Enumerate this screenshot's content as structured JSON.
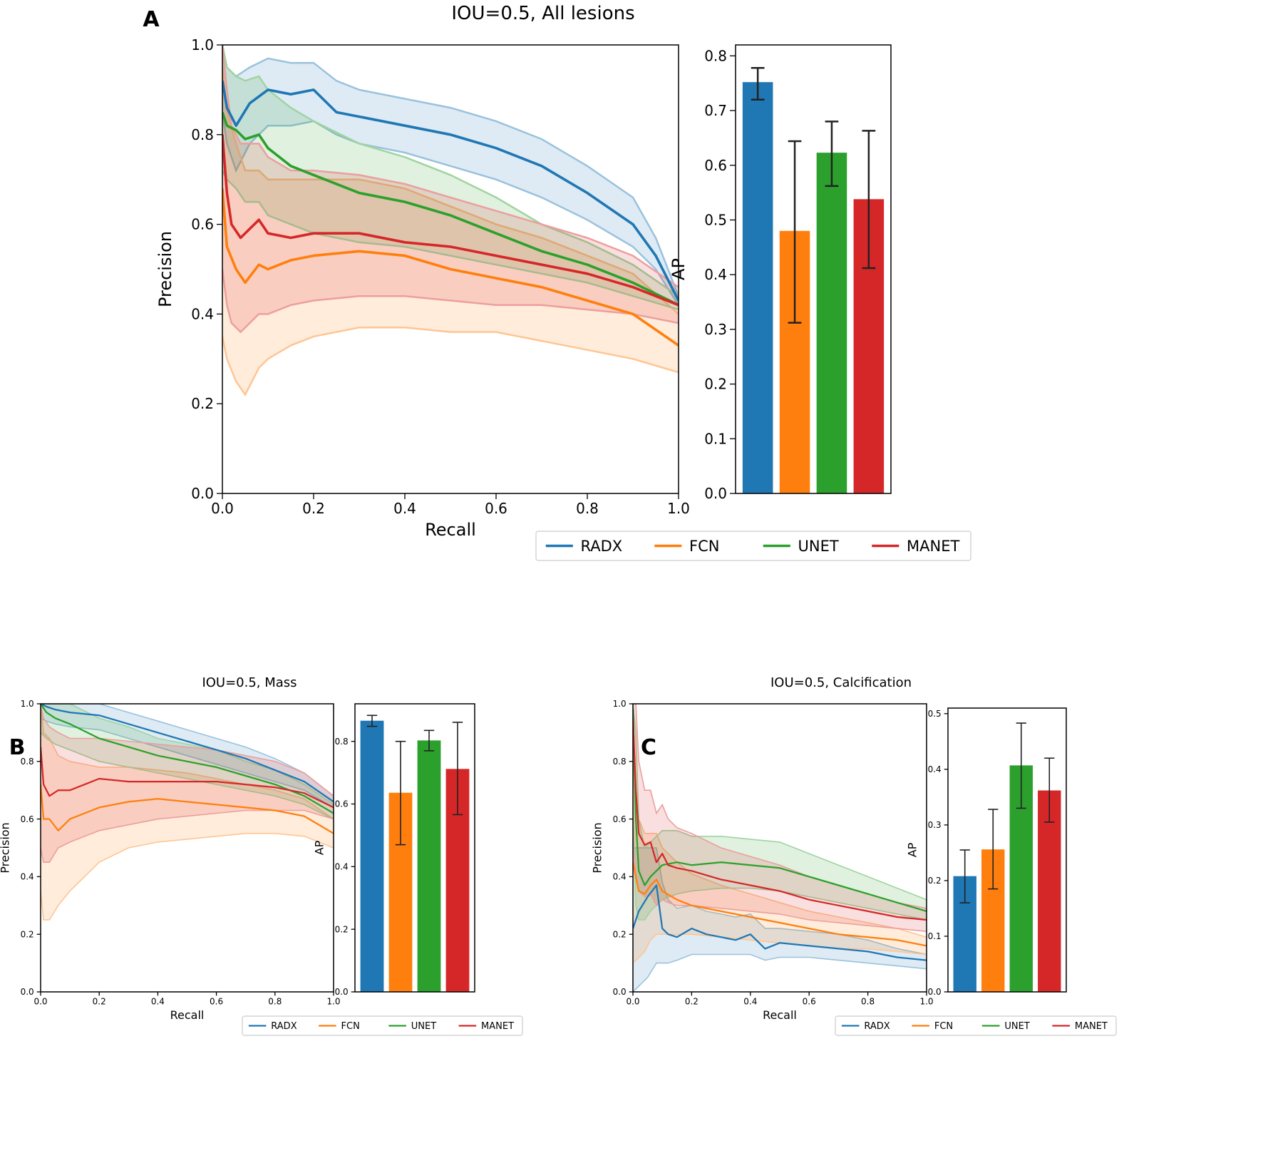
{
  "panel_labels": {
    "a": "A",
    "b": "B",
    "c": "C"
  },
  "colors": {
    "RADX": "#1f77b4",
    "FCN": "#ff7f0e",
    "UNET": "#2ca02c",
    "MANET": "#d62728",
    "axis": "#000000"
  },
  "chart_data": [
    {
      "id": "A",
      "type": "line",
      "title": "IOU=0.5, All lesions",
      "xlabel": "Recall",
      "ylabel": "Precision",
      "xlim": [
        0,
        1
      ],
      "ylim": [
        0,
        1
      ],
      "xticks": [
        "0.0",
        "0.2",
        "0.4",
        "0.6",
        "0.8",
        "1.0"
      ],
      "yticks": [
        "0.0",
        "0.2",
        "0.4",
        "0.6",
        "0.8",
        "1.0"
      ],
      "series": [
        {
          "name": "RADX",
          "x": [
            0,
            0.01,
            0.03,
            0.06,
            0.1,
            0.15,
            0.2,
            0.25,
            0.3,
            0.4,
            0.5,
            0.6,
            0.7,
            0.8,
            0.9,
            0.95,
            1.0
          ],
          "y": [
            0.92,
            0.86,
            0.82,
            0.87,
            0.9,
            0.89,
            0.9,
            0.85,
            0.84,
            0.82,
            0.8,
            0.77,
            0.73,
            0.67,
            0.6,
            0.53,
            0.43
          ],
          "lower": [
            0.85,
            0.78,
            0.72,
            0.78,
            0.82,
            0.82,
            0.83,
            0.8,
            0.78,
            0.76,
            0.73,
            0.7,
            0.66,
            0.61,
            0.55,
            0.5,
            0.42
          ],
          "upper": [
            1.0,
            0.95,
            0.93,
            0.95,
            0.97,
            0.96,
            0.96,
            0.92,
            0.9,
            0.88,
            0.86,
            0.83,
            0.79,
            0.73,
            0.66,
            0.57,
            0.44
          ]
        },
        {
          "name": "FCN",
          "x": [
            0,
            0.01,
            0.03,
            0.05,
            0.08,
            0.1,
            0.15,
            0.2,
            0.3,
            0.4,
            0.5,
            0.6,
            0.7,
            0.8,
            0.9,
            1.0
          ],
          "y": [
            0.68,
            0.55,
            0.5,
            0.47,
            0.51,
            0.5,
            0.52,
            0.53,
            0.54,
            0.53,
            0.5,
            0.48,
            0.46,
            0.43,
            0.4,
            0.33
          ],
          "lower": [
            0.35,
            0.3,
            0.25,
            0.22,
            0.28,
            0.3,
            0.33,
            0.35,
            0.37,
            0.37,
            0.36,
            0.36,
            0.34,
            0.32,
            0.3,
            0.27
          ],
          "upper": [
            0.95,
            0.85,
            0.78,
            0.72,
            0.72,
            0.7,
            0.7,
            0.7,
            0.7,
            0.68,
            0.64,
            0.6,
            0.57,
            0.53,
            0.49,
            0.4
          ]
        },
        {
          "name": "UNET",
          "x": [
            0,
            0.01,
            0.03,
            0.05,
            0.08,
            0.1,
            0.15,
            0.2,
            0.3,
            0.4,
            0.5,
            0.6,
            0.7,
            0.8,
            0.9,
            1.0
          ],
          "y": [
            0.85,
            0.82,
            0.81,
            0.79,
            0.8,
            0.77,
            0.73,
            0.71,
            0.67,
            0.65,
            0.62,
            0.58,
            0.54,
            0.51,
            0.47,
            0.42
          ],
          "lower": [
            0.72,
            0.7,
            0.68,
            0.65,
            0.65,
            0.62,
            0.6,
            0.58,
            0.56,
            0.55,
            0.53,
            0.51,
            0.49,
            0.47,
            0.44,
            0.41
          ],
          "upper": [
            1.0,
            0.95,
            0.93,
            0.92,
            0.93,
            0.9,
            0.86,
            0.83,
            0.78,
            0.75,
            0.71,
            0.66,
            0.6,
            0.56,
            0.51,
            0.44
          ]
        },
        {
          "name": "MANET",
          "x": [
            0,
            0.01,
            0.02,
            0.04,
            0.06,
            0.08,
            0.1,
            0.15,
            0.2,
            0.3,
            0.4,
            0.5,
            0.6,
            0.7,
            0.8,
            0.9,
            1.0
          ],
          "y": [
            0.8,
            0.67,
            0.6,
            0.57,
            0.59,
            0.61,
            0.58,
            0.57,
            0.58,
            0.58,
            0.56,
            0.55,
            0.53,
            0.51,
            0.49,
            0.46,
            0.42
          ],
          "lower": [
            0.5,
            0.42,
            0.38,
            0.36,
            0.38,
            0.4,
            0.4,
            0.42,
            0.43,
            0.44,
            0.44,
            0.43,
            0.42,
            0.42,
            0.41,
            0.4,
            0.38
          ],
          "upper": [
            1.0,
            0.9,
            0.82,
            0.78,
            0.78,
            0.78,
            0.75,
            0.72,
            0.72,
            0.71,
            0.69,
            0.66,
            0.63,
            0.6,
            0.57,
            0.53,
            0.46
          ]
        }
      ],
      "bar": {
        "ylabel": "AP",
        "ylim": [
          0,
          0.82
        ],
        "yticks": [
          "0.0",
          "0.1",
          "0.2",
          "0.3",
          "0.4",
          "0.5",
          "0.6",
          "0.7",
          "0.8"
        ],
        "categories": [
          "RADX",
          "FCN",
          "UNET",
          "MANET"
        ],
        "values": [
          0.752,
          0.48,
          0.623,
          0.538
        ],
        "err_low": [
          0.72,
          0.312,
          0.562,
          0.412
        ],
        "err_high": [
          0.778,
          0.644,
          0.68,
          0.663
        ]
      },
      "legend": [
        "RADX",
        "FCN",
        "UNET",
        "MANET"
      ]
    },
    {
      "id": "B",
      "type": "line",
      "title": "IOU=0.5, Mass",
      "xlabel": "Recall",
      "ylabel": "Precision",
      "xlim": [
        0,
        1
      ],
      "ylim": [
        0,
        1
      ],
      "xticks": [
        "0.0",
        "0.2",
        "0.4",
        "0.6",
        "0.8",
        "1.0"
      ],
      "yticks": [
        "0.0",
        "0.2",
        "0.4",
        "0.6",
        "0.8",
        "1.0"
      ],
      "series": [
        {
          "name": "RADX",
          "x": [
            0,
            0.02,
            0.05,
            0.1,
            0.2,
            0.3,
            0.4,
            0.5,
            0.6,
            0.7,
            0.8,
            0.9,
            1.0
          ],
          "y": [
            1.0,
            0.99,
            0.98,
            0.97,
            0.96,
            0.93,
            0.9,
            0.87,
            0.84,
            0.81,
            0.77,
            0.73,
            0.66
          ],
          "lower": [
            0.95,
            0.94,
            0.93,
            0.92,
            0.91,
            0.88,
            0.85,
            0.82,
            0.79,
            0.76,
            0.73,
            0.7,
            0.64
          ],
          "upper": [
            1.0,
            1.0,
            1.0,
            1.0,
            1.0,
            0.97,
            0.94,
            0.91,
            0.88,
            0.85,
            0.81,
            0.76,
            0.68
          ]
        },
        {
          "name": "FCN",
          "x": [
            0,
            0.01,
            0.03,
            0.06,
            0.1,
            0.2,
            0.3,
            0.4,
            0.5,
            0.6,
            0.7,
            0.8,
            0.9,
            1.0
          ],
          "y": [
            0.72,
            0.6,
            0.6,
            0.56,
            0.6,
            0.64,
            0.66,
            0.67,
            0.66,
            0.65,
            0.64,
            0.63,
            0.61,
            0.55
          ],
          "lower": [
            0.35,
            0.25,
            0.25,
            0.3,
            0.35,
            0.45,
            0.5,
            0.52,
            0.53,
            0.54,
            0.55,
            0.55,
            0.54,
            0.5
          ],
          "upper": [
            1.0,
            0.9,
            0.88,
            0.82,
            0.8,
            0.78,
            0.78,
            0.77,
            0.76,
            0.74,
            0.72,
            0.7,
            0.67,
            0.6
          ]
        },
        {
          "name": "UNET",
          "x": [
            0,
            0.02,
            0.05,
            0.1,
            0.2,
            0.3,
            0.4,
            0.5,
            0.6,
            0.7,
            0.8,
            0.9,
            1.0
          ],
          "y": [
            1.0,
            0.97,
            0.95,
            0.93,
            0.88,
            0.85,
            0.82,
            0.8,
            0.78,
            0.75,
            0.72,
            0.68,
            0.62
          ],
          "lower": [
            0.9,
            0.88,
            0.86,
            0.84,
            0.8,
            0.78,
            0.76,
            0.74,
            0.72,
            0.7,
            0.68,
            0.65,
            0.6
          ],
          "upper": [
            1.0,
            1.0,
            1.0,
            1.0,
            0.95,
            0.92,
            0.88,
            0.86,
            0.84,
            0.8,
            0.77,
            0.72,
            0.65
          ]
        },
        {
          "name": "MANET",
          "x": [
            0,
            0.01,
            0.03,
            0.06,
            0.1,
            0.2,
            0.3,
            0.4,
            0.5,
            0.6,
            0.7,
            0.8,
            0.9,
            1.0
          ],
          "y": [
            0.85,
            0.72,
            0.68,
            0.7,
            0.7,
            0.74,
            0.73,
            0.73,
            0.73,
            0.73,
            0.72,
            0.71,
            0.69,
            0.64
          ],
          "lower": [
            0.5,
            0.45,
            0.45,
            0.5,
            0.52,
            0.56,
            0.58,
            0.6,
            0.61,
            0.62,
            0.63,
            0.63,
            0.63,
            0.6
          ],
          "upper": [
            1.0,
            0.95,
            0.92,
            0.9,
            0.88,
            0.88,
            0.87,
            0.86,
            0.85,
            0.84,
            0.82,
            0.8,
            0.76,
            0.68
          ]
        }
      ],
      "bar": {
        "ylabel": "AP",
        "ylim": [
          0,
          0.92
        ],
        "yticks": [
          "0.0",
          "0.2",
          "0.4",
          "0.6",
          "0.8"
        ],
        "categories": [
          "RADX",
          "FCN",
          "UNET",
          "MANET"
        ],
        "values": [
          0.866,
          0.636,
          0.803,
          0.712
        ],
        "err_low": [
          0.848,
          0.47,
          0.77,
          0.566
        ],
        "err_high": [
          0.883,
          0.8,
          0.835,
          0.861
        ]
      },
      "legend": [
        "RADX",
        "FCN",
        "UNET",
        "MANET"
      ]
    },
    {
      "id": "C",
      "type": "line",
      "title": "IOU=0.5, Calcification",
      "xlabel": "Recall",
      "ylabel": "Precision",
      "xlim": [
        0,
        1
      ],
      "ylim": [
        0,
        1
      ],
      "xticks": [
        "0.0",
        "0.2",
        "0.4",
        "0.6",
        "0.8",
        "1.0"
      ],
      "yticks": [
        "0.0",
        "0.2",
        "0.4",
        "0.6",
        "0.8",
        "1.0"
      ],
      "series": [
        {
          "name": "RADX",
          "x": [
            0,
            0.02,
            0.05,
            0.08,
            0.1,
            0.12,
            0.15,
            0.2,
            0.25,
            0.3,
            0.35,
            0.4,
            0.45,
            0.5,
            0.6,
            0.7,
            0.8,
            0.9,
            1.0
          ],
          "y": [
            0.22,
            0.28,
            0.33,
            0.37,
            0.22,
            0.2,
            0.19,
            0.22,
            0.2,
            0.19,
            0.18,
            0.2,
            0.15,
            0.17,
            0.16,
            0.15,
            0.14,
            0.12,
            0.11
          ],
          "lower": [
            0.0,
            0.02,
            0.05,
            0.1,
            0.1,
            0.1,
            0.11,
            0.13,
            0.13,
            0.13,
            0.13,
            0.13,
            0.11,
            0.12,
            0.12,
            0.11,
            0.1,
            0.09,
            0.08
          ],
          "upper": [
            0.5,
            0.5,
            0.5,
            0.5,
            0.38,
            0.32,
            0.29,
            0.3,
            0.28,
            0.27,
            0.26,
            0.27,
            0.22,
            0.22,
            0.21,
            0.2,
            0.18,
            0.15,
            0.13
          ]
        },
        {
          "name": "FCN",
          "x": [
            0,
            0.02,
            0.04,
            0.06,
            0.08,
            0.1,
            0.15,
            0.2,
            0.3,
            0.4,
            0.5,
            0.6,
            0.7,
            0.8,
            0.9,
            1.0
          ],
          "y": [
            0.45,
            0.35,
            0.34,
            0.37,
            0.39,
            0.35,
            0.32,
            0.3,
            0.28,
            0.26,
            0.24,
            0.22,
            0.2,
            0.19,
            0.18,
            0.16
          ],
          "lower": [
            0.1,
            0.12,
            0.14,
            0.18,
            0.2,
            0.2,
            0.2,
            0.2,
            0.19,
            0.18,
            0.17,
            0.16,
            0.15,
            0.15,
            0.14,
            0.13
          ],
          "upper": [
            0.8,
            0.6,
            0.55,
            0.55,
            0.55,
            0.5,
            0.45,
            0.41,
            0.37,
            0.34,
            0.31,
            0.28,
            0.26,
            0.24,
            0.22,
            0.19
          ]
        },
        {
          "name": "UNET",
          "x": [
            0,
            0.01,
            0.02,
            0.04,
            0.06,
            0.1,
            0.15,
            0.2,
            0.3,
            0.4,
            0.5,
            0.6,
            0.7,
            0.8,
            0.9,
            1.0
          ],
          "y": [
            0.98,
            0.6,
            0.42,
            0.37,
            0.4,
            0.44,
            0.45,
            0.44,
            0.45,
            0.44,
            0.43,
            0.4,
            0.37,
            0.34,
            0.31,
            0.28
          ],
          "lower": [
            0.6,
            0.3,
            0.25,
            0.25,
            0.28,
            0.32,
            0.34,
            0.35,
            0.36,
            0.36,
            0.35,
            0.33,
            0.31,
            0.29,
            0.27,
            0.25
          ],
          "upper": [
            1.0,
            0.9,
            0.6,
            0.5,
            0.52,
            0.56,
            0.56,
            0.54,
            0.54,
            0.53,
            0.52,
            0.48,
            0.44,
            0.4,
            0.36,
            0.32
          ]
        },
        {
          "name": "MANET",
          "x": [
            0,
            0.01,
            0.02,
            0.04,
            0.06,
            0.08,
            0.1,
            0.12,
            0.15,
            0.2,
            0.3,
            0.4,
            0.5,
            0.6,
            0.7,
            0.8,
            0.9,
            1.0
          ],
          "y": [
            0.95,
            0.7,
            0.55,
            0.51,
            0.52,
            0.45,
            0.48,
            0.44,
            0.43,
            0.42,
            0.39,
            0.37,
            0.35,
            0.32,
            0.3,
            0.28,
            0.26,
            0.25
          ],
          "lower": [
            0.5,
            0.4,
            0.35,
            0.33,
            0.34,
            0.3,
            0.32,
            0.31,
            0.3,
            0.3,
            0.29,
            0.28,
            0.27,
            0.25,
            0.24,
            0.23,
            0.22,
            0.21
          ],
          "upper": [
            1.0,
            1.0,
            0.8,
            0.7,
            0.7,
            0.62,
            0.65,
            0.6,
            0.57,
            0.55,
            0.5,
            0.47,
            0.44,
            0.4,
            0.37,
            0.34,
            0.31,
            0.29
          ]
        }
      ],
      "bar": {
        "ylabel": "AP",
        "ylim": [
          0,
          0.51
        ],
        "yticks": [
          "0.0",
          "0.1",
          "0.2",
          "0.3",
          "0.4",
          "0.5"
        ],
        "categories": [
          "RADX",
          "FCN",
          "UNET",
          "MANET"
        ],
        "values": [
          0.208,
          0.256,
          0.407,
          0.362
        ],
        "err_low": [
          0.16,
          0.185,
          0.33,
          0.305
        ],
        "err_high": [
          0.255,
          0.328,
          0.483,
          0.42
        ]
      },
      "legend": [
        "RADX",
        "FCN",
        "UNET",
        "MANET"
      ]
    }
  ]
}
